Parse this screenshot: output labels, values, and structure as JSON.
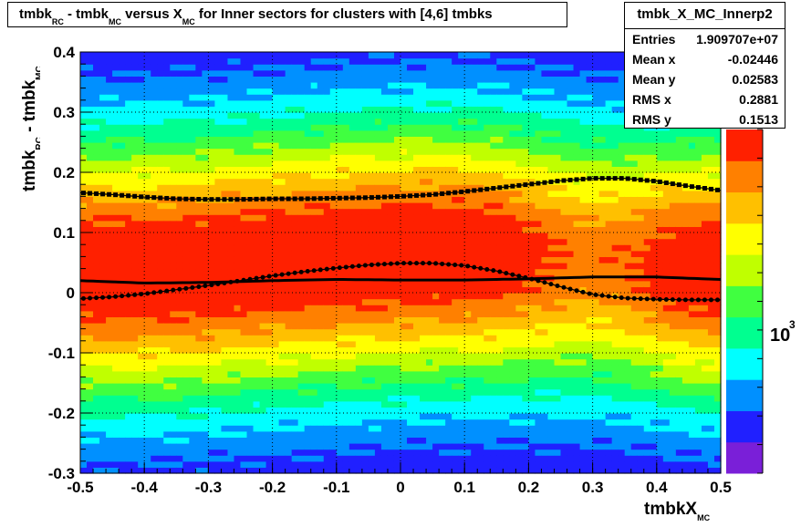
{
  "title": {
    "p1": "tmbk",
    "s1": "RC",
    "p2": " - tmbk",
    "s2": "MC",
    "p3": " versus X",
    "s3": "MC",
    "p4": " for Inner sectors for clusters with [4,6] tmbks"
  },
  "stats": {
    "name": "tmbk_X_MC_Innerp2",
    "rows": [
      {
        "label": "Entries",
        "value": "1.909707e+07"
      },
      {
        "label": "Mean x",
        "value": "-0.02446"
      },
      {
        "label": "Mean y",
        "value": "0.02583"
      },
      {
        "label": "RMS x",
        "value": "0.2881"
      },
      {
        "label": "RMS y",
        "value": "0.1513"
      }
    ]
  },
  "ylabel": {
    "p1": "tmbk",
    "s1": "RC",
    "p2": " - tmbk",
    "s2": "MC"
  },
  "xlabel": {
    "p1": "tmbkX",
    "s1": "MC"
  },
  "colorbar_label": {
    "base": "10",
    "exp": "3"
  },
  "chart_data": {
    "type": "heatmap",
    "xlim": [
      -0.5,
      0.5
    ],
    "ylim": [
      -0.3,
      0.4
    ],
    "x_ticks": [
      "-0.5",
      "-0.4",
      "-0.3",
      "-0.2",
      "-0.1",
      "0",
      "0.1",
      "0.2",
      "0.3",
      "0.4",
      "0.5"
    ],
    "y_ticks": [
      "-0.3",
      "-0.2",
      "-0.1",
      "0",
      "0.1",
      "0.2",
      "0.3",
      "0.4"
    ],
    "grid": true,
    "colormap": [
      "#7a1fd8",
      "#2020ff",
      "#0090ff",
      "#00ffff",
      "#00ff90",
      "#40ff40",
      "#c0ff00",
      "#ffff00",
      "#ffc000",
      "#ff8000",
      "#ff2000"
    ],
    "profile_upper": {
      "x": [
        -0.5,
        -0.45,
        -0.4,
        -0.35,
        -0.3,
        -0.25,
        -0.2,
        -0.15,
        -0.1,
        -0.05,
        0,
        0.05,
        0.1,
        0.15,
        0.2,
        0.25,
        0.3,
        0.35,
        0.4,
        0.45,
        0.5
      ],
      "y": [
        0.166,
        0.163,
        0.159,
        0.156,
        0.155,
        0.155,
        0.156,
        0.156,
        0.157,
        0.158,
        0.16,
        0.163,
        0.168,
        0.174,
        0.18,
        0.186,
        0.19,
        0.19,
        0.185,
        0.177,
        0.17
      ]
    },
    "profile_lower": {
      "x": [
        -0.5,
        -0.45,
        -0.4,
        -0.35,
        -0.3,
        -0.25,
        -0.2,
        -0.15,
        -0.1,
        -0.05,
        0,
        0.05,
        0.1,
        0.15,
        0.2,
        0.25,
        0.3,
        0.35,
        0.4,
        0.45,
        0.5
      ],
      "y": [
        -0.01,
        -0.007,
        -0.002,
        0.005,
        0.012,
        0.02,
        0.028,
        0.035,
        0.041,
        0.046,
        0.049,
        0.049,
        0.045,
        0.036,
        0.024,
        0.01,
        -0.003,
        -0.009,
        -0.011,
        -0.012,
        -0.012
      ]
    },
    "profile_mean": {
      "x": [
        -0.5,
        -0.4,
        -0.3,
        -0.2,
        -0.1,
        0,
        0.1,
        0.2,
        0.3,
        0.4,
        0.5
      ],
      "y": [
        0.02,
        0.016,
        0.017,
        0.02,
        0.022,
        0.021,
        0.021,
        0.023,
        0.026,
        0.026,
        0.022
      ]
    }
  }
}
